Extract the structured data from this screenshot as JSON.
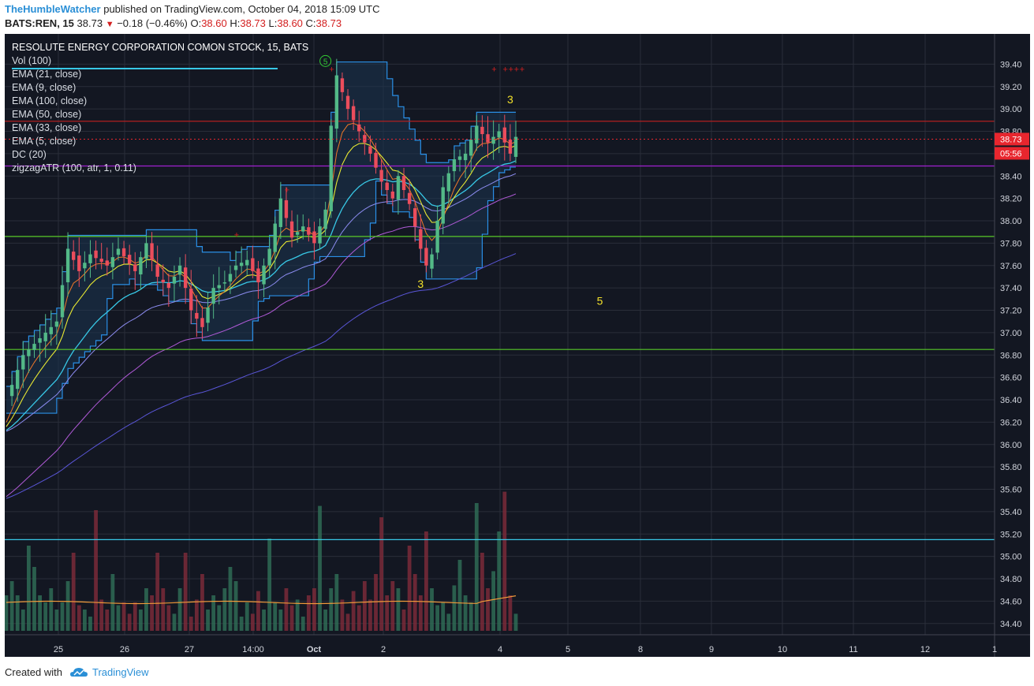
{
  "header": {
    "user": "TheHumbleWatcher",
    "published_text": "published on TradingView.com, October 04, 2018 15:09 UTC",
    "symbol": "BATS:REN, 15",
    "last": "38.73",
    "change": "−0.18 (−0.46%)",
    "o_label": "O:",
    "o": "38.60",
    "h_label": "H:",
    "h": "38.73",
    "l_label": "L:",
    "l": "38.60",
    "c_label": "C:",
    "c": "38.73"
  },
  "legend": {
    "title": "RESOLUTE ENERGY CORPORATION COMON STOCK, 15, BATS",
    "items": [
      "Vol (100)",
      "EMA (21, close)",
      "EMA (9, close)",
      "EMA (100, close)",
      "EMA (50, close)",
      "EMA (33, close)",
      "EMA (5, close)",
      "DC (20)",
      "zigzagATR (100, atr, 1, 0.11)"
    ]
  },
  "footer": {
    "created_with": "Created with",
    "brand": "TradingView"
  },
  "colors": {
    "background": "#131722",
    "grid": "#2a2e39",
    "axis_text": "#d1d4dc",
    "up": "#53b987",
    "down": "#eb4d5c",
    "price_tag": "#e8262e",
    "ema21": "#38c8e6",
    "ema9": "#e8e832",
    "ema100": "#5a56d8",
    "ema50": "#b05ad8",
    "ema33": "#8c8cf0",
    "ema5": "#f07828",
    "dc": "#2a8fe6",
    "volume_ma": "#f09a3a"
  },
  "chart_data": {
    "type": "candlestick",
    "timeframe": "15",
    "y_axis": {
      "position": "right",
      "ylim": [
        34.3,
        39.6
      ],
      "ticks": [
        "39.40",
        "39.20",
        "39.00",
        "38.80",
        "38.60",
        "38.40",
        "38.20",
        "38.00",
        "37.80",
        "37.60",
        "37.40",
        "37.20",
        "37.00",
        "36.80",
        "36.60",
        "36.40",
        "36.20",
        "36.00",
        "35.80",
        "35.60",
        "35.40",
        "35.20",
        "35.00",
        "34.80",
        "34.60",
        "34.40"
      ]
    },
    "x_axis": {
      "ticks": [
        "25",
        "26",
        "27",
        "14:00",
        "Oct",
        "2",
        "4",
        "5",
        "8",
        "9",
        "10",
        "11",
        "12",
        "1"
      ]
    },
    "last_price": "38.73",
    "countdown": "05:56",
    "horizontal_lines": [
      {
        "price": 38.89,
        "color": "#b02020"
      },
      {
        "price": 38.49,
        "color": "#a020d0"
      },
      {
        "price": 37.86,
        "color": "#58c828"
      },
      {
        "price": 36.85,
        "color": "#58c828"
      },
      {
        "price": 35.15,
        "color": "#38c8e6"
      }
    ],
    "wave_labels": [
      {
        "text": "5",
        "x_index": 57,
        "price": 39.4,
        "circled": true
      },
      {
        "text": "3",
        "x_index": 90,
        "price": 39.05
      },
      {
        "text": "3",
        "x_index": 74,
        "price": 37.4
      },
      {
        "text": "5",
        "x_index": 106,
        "price": 37.25
      }
    ],
    "path_points": [
      [
        0,
        36.4
      ],
      [
        3,
        36.8
      ],
      [
        6,
        36.95
      ],
      [
        9,
        37.1
      ],
      [
        11,
        37.75
      ],
      [
        13,
        37.55
      ],
      [
        15,
        37.7
      ],
      [
        18,
        37.6
      ],
      [
        20,
        37.75
      ],
      [
        23,
        37.55
      ],
      [
        25,
        37.8
      ],
      [
        27,
        37.5
      ],
      [
        29,
        37.4
      ],
      [
        31,
        37.6
      ],
      [
        33,
        37.2
      ],
      [
        35,
        37.05
      ],
      [
        37,
        37.4
      ],
      [
        39,
        37.45
      ],
      [
        41,
        37.6
      ],
      [
        43,
        37.65
      ],
      [
        45,
        37.45
      ],
      [
        47,
        37.75
      ],
      [
        49,
        38.2
      ],
      [
        51,
        37.85
      ],
      [
        53,
        37.95
      ],
      [
        55,
        37.8
      ],
      [
        57,
        38.1
      ],
      [
        58,
        38.85
      ],
      [
        59,
        39.3
      ],
      [
        61,
        39.0
      ],
      [
        63,
        38.8
      ],
      [
        65,
        38.6
      ],
      [
        67,
        38.35
      ],
      [
        69,
        38.2
      ],
      [
        70,
        38.4
      ],
      [
        72,
        38.15
      ],
      [
        74,
        37.75
      ],
      [
        75,
        37.6
      ],
      [
        76,
        37.7
      ],
      [
        78,
        38.3
      ],
      [
        80,
        38.55
      ],
      [
        82,
        38.6
      ],
      [
        84,
        38.85
      ],
      [
        86,
        38.7
      ],
      [
        88,
        38.8
      ],
      [
        90,
        38.6
      ],
      [
        91,
        38.75
      ]
    ],
    "volume": [
      0.25,
      0.35,
      0.25,
      0.15,
      0.6,
      0.45,
      0.25,
      0.2,
      0.3,
      0.15,
      0.2,
      0.35,
      0.55,
      0.18,
      0.15,
      0.1,
      0.85,
      0.22,
      0.15,
      0.4,
      0.18,
      0.2,
      0.12,
      0.2,
      0.15,
      0.3,
      0.25,
      0.55,
      0.3,
      0.18,
      0.12,
      0.3,
      0.55,
      0.1,
      0.22,
      0.4,
      0.15,
      0.25,
      0.18,
      0.3,
      0.45,
      0.35,
      0.1,
      0.2,
      0.12,
      0.28,
      0.15,
      0.65,
      0.2,
      0.15,
      0.3,
      0.18,
      0.22,
      0.1,
      0.25,
      0.3,
      0.88,
      0.15,
      0.3,
      0.4,
      0.22,
      0.12,
      0.28,
      0.18,
      0.35,
      0.22,
      0.4,
      0.8,
      0.25,
      0.35,
      0.3,
      0.15,
      0.6,
      0.4,
      0.25,
      0.7,
      0.3,
      0.18,
      0.2,
      0.12,
      0.32,
      0.5,
      0.25,
      0.2,
      0.9,
      0.55,
      0.3,
      0.42,
      0.7,
      0.98,
      0.25,
      0.12
    ]
  }
}
